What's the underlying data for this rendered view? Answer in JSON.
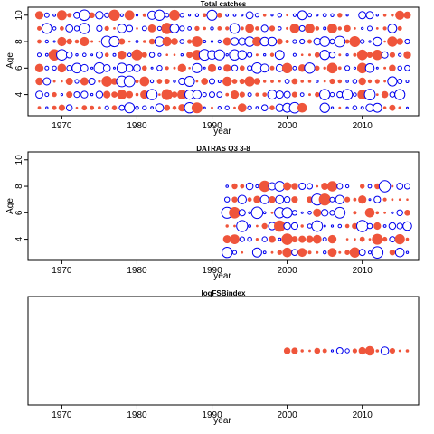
{
  "colors": {
    "positive": "#ef553b",
    "negative": "#0000ee",
    "frame": "#000000"
  },
  "chart_data": [
    {
      "type": "scatter",
      "subtype": "bubble",
      "title": "Total catches",
      "xlabel": "year",
      "ylabel": "Age",
      "xlim": [
        1965.5,
        2017.5
      ],
      "ylim": [
        2.4,
        10.6
      ],
      "xticks": [
        1970,
        1980,
        1990,
        2000,
        2010
      ],
      "yticks": [
        4,
        6,
        8,
        10
      ],
      "x_range": [
        1967,
        2016
      ],
      "ages": [
        3,
        4,
        5,
        6,
        7,
        8,
        9,
        10
      ],
      "seed": 11,
      "max_radius": 6,
      "empty_frac": 0.03
    },
    {
      "type": "scatter",
      "subtype": "bubble",
      "title": "DATRAS Q3 3-8",
      "xlabel": "year",
      "ylabel": "Age",
      "xlim": [
        1965.5,
        2017.5
      ],
      "ylim": [
        2.4,
        10.6
      ],
      "xticks": [
        1970,
        1980,
        1990,
        2000,
        2010
      ],
      "yticks": [
        4,
        6,
        8,
        10
      ],
      "x_range": [
        1992,
        2016
      ],
      "ages": [
        3,
        4,
        5,
        6,
        7,
        8
      ],
      "seed": 29,
      "max_radius": 6.5,
      "empty_frac": 0.03
    },
    {
      "type": "scatter",
      "subtype": "bubble",
      "title": "logFSBindex",
      "xlabel": "year",
      "ylabel": "",
      "xlim": [
        1965.5,
        2017.5
      ],
      "ylim": [
        -1,
        1
      ],
      "xticks": [
        1970,
        1980,
        1990,
        2000,
        2010
      ],
      "yticks": [],
      "x_range": [
        2000,
        2016
      ],
      "ages": [
        0
      ],
      "seed": 5,
      "max_radius": 5,
      "empty_frac": 0.0
    }
  ]
}
